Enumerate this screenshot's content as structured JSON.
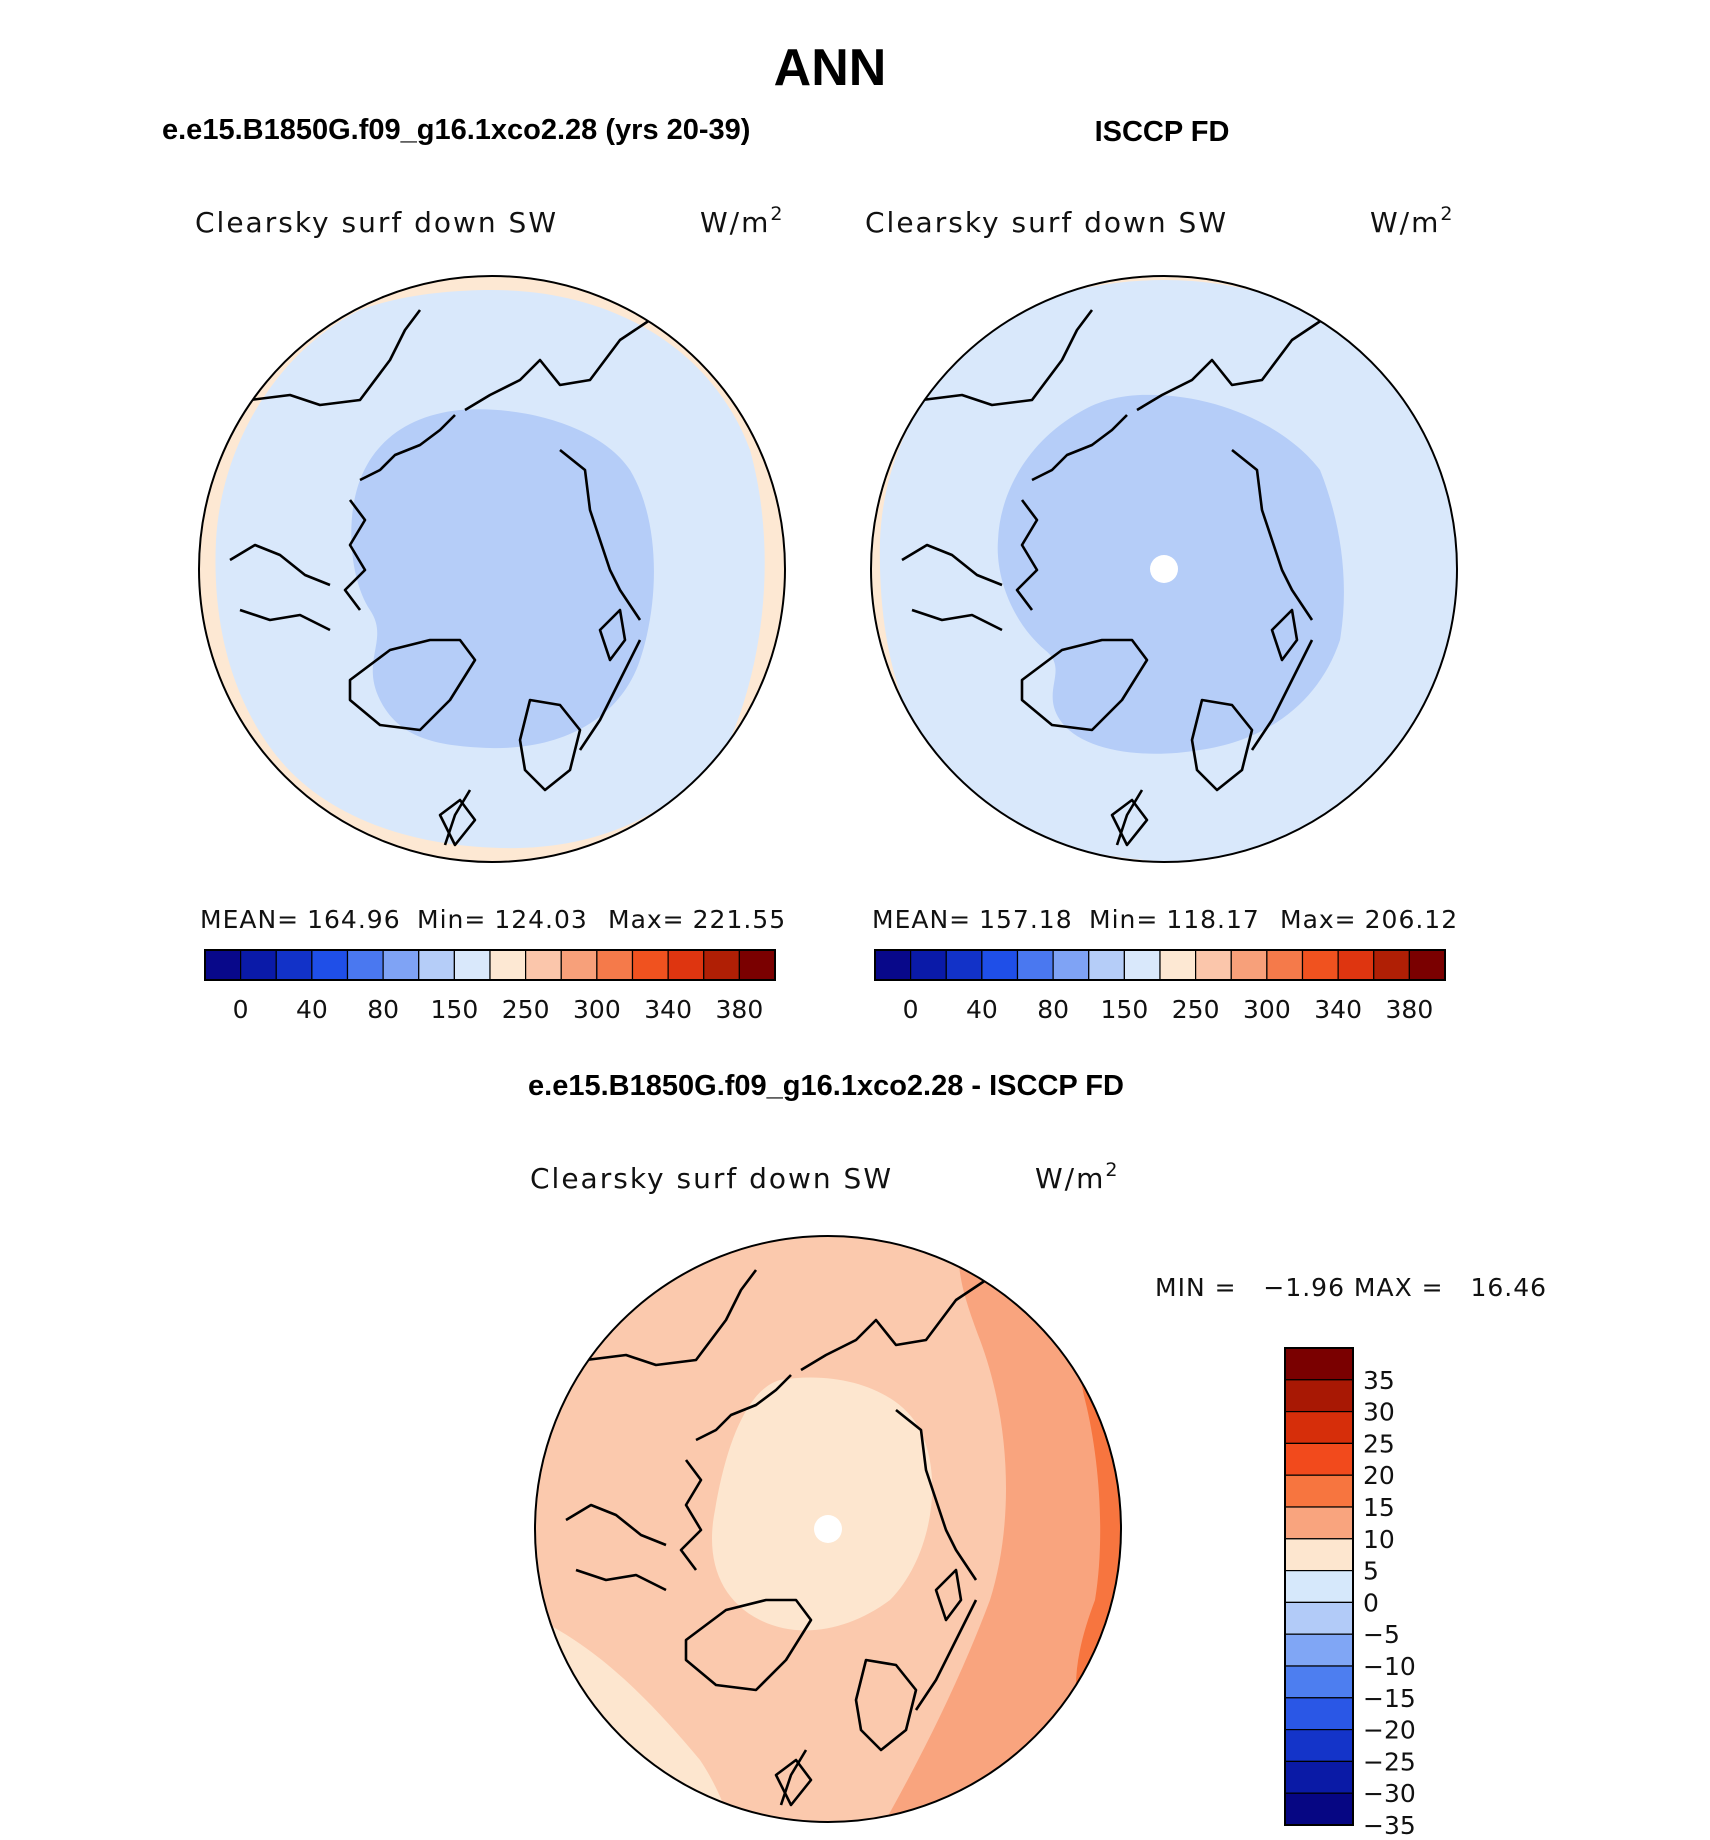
{
  "figure": {
    "title": "ANN"
  },
  "chart_data": [
    {
      "type": "heatmap",
      "panel_title": "e.e15.B1850G.f09_g16.1xco2.28 (yrs 20-39)",
      "variable": "Clearsky surf down SW",
      "units": "W/m",
      "units_exponent": "2",
      "stats": [
        {
          "label": "MEAN=",
          "value": "164.96"
        },
        {
          "label": "Min=",
          "value": "124.03"
        },
        {
          "label": "Max=",
          "value": "221.55"
        }
      ],
      "colorbar": {
        "orientation": "horizontal",
        "tick_labels": [
          "0",
          "40",
          "80",
          "150",
          "250",
          "300",
          "340",
          "380"
        ],
        "colors": [
          "#08088a",
          "#0a1aa8",
          "#1232c8",
          "#1f4fe8",
          "#4a78f0",
          "#7fa3f5",
          "#b5cdf8",
          "#d9e8fb",
          "#fde8d3",
          "#fbc6ab",
          "#f7a07a",
          "#f57a4a",
          "#f0521f",
          "#de3510",
          "#b01f05",
          "#7a0000"
        ]
      },
      "regions": [
        {
          "name": "outer-ring",
          "color": "#fde8d3"
        },
        {
          "name": "mid-latitudes",
          "color": "#d9e8fb"
        },
        {
          "name": "arctic",
          "color": "#b5cdf8"
        }
      ]
    },
    {
      "type": "heatmap",
      "panel_title": "ISCCP FD",
      "variable": "Clearsky surf down SW",
      "units": "W/m",
      "units_exponent": "2",
      "stats": [
        {
          "label": "MEAN=",
          "value": "157.18"
        },
        {
          "label": "Min=",
          "value": "118.17"
        },
        {
          "label": "Max=",
          "value": "206.12"
        }
      ],
      "colorbar": {
        "orientation": "horizontal",
        "tick_labels": [
          "0",
          "40",
          "80",
          "150",
          "250",
          "300",
          "340",
          "380"
        ],
        "colors": [
          "#08088a",
          "#0a1aa8",
          "#1232c8",
          "#1f4fe8",
          "#4a78f0",
          "#7fa3f5",
          "#b5cdf8",
          "#d9e8fb",
          "#fde8d3",
          "#fbc6ab",
          "#f7a07a",
          "#f57a4a",
          "#f0521f",
          "#de3510",
          "#b01f05",
          "#7a0000"
        ]
      },
      "regions": [
        {
          "name": "outer-ring",
          "color": "#fde8d3"
        },
        {
          "name": "mid-latitudes",
          "color": "#d9e8fb"
        },
        {
          "name": "arctic",
          "color": "#b5cdf8"
        },
        {
          "name": "pole-missing",
          "color": "#ffffff"
        }
      ]
    },
    {
      "type": "heatmap",
      "panel_title": "e.e15.B1850G.f09_g16.1xco2.28 - ISCCP FD",
      "variable": "Clearsky surf down SW",
      "units": "W/m",
      "units_exponent": "2",
      "minmax": {
        "label": "MIN =   −1.96 MAX =   16.46"
      },
      "colorbar": {
        "orientation": "vertical",
        "tick_labels": [
          "35",
          "30",
          "25",
          "20",
          "15",
          "10",
          "5",
          "0",
          "−5",
          "−10",
          "−15",
          "−20",
          "−25",
          "−30",
          "−35"
        ],
        "colors": [
          "#7a0000",
          "#a81804",
          "#d62e0a",
          "#f24a1c",
          "#f7753f",
          "#f9a47e",
          "#fde6cf",
          "#d6e8fb",
          "#b2cbf8",
          "#80a6f5",
          "#4d7ef0",
          "#2a57e6",
          "#1434c9",
          "#0a1aa6",
          "#060683"
        ]
      },
      "regions": [
        {
          "name": "pole",
          "color": "#fde6cf"
        },
        {
          "name": "mid",
          "color": "#fbc9ad"
        },
        {
          "name": "east-band",
          "color": "#f9a47e"
        },
        {
          "name": "east-edge",
          "color": "#f7753f"
        },
        {
          "name": "pole-missing",
          "color": "#ffffff"
        }
      ]
    }
  ]
}
